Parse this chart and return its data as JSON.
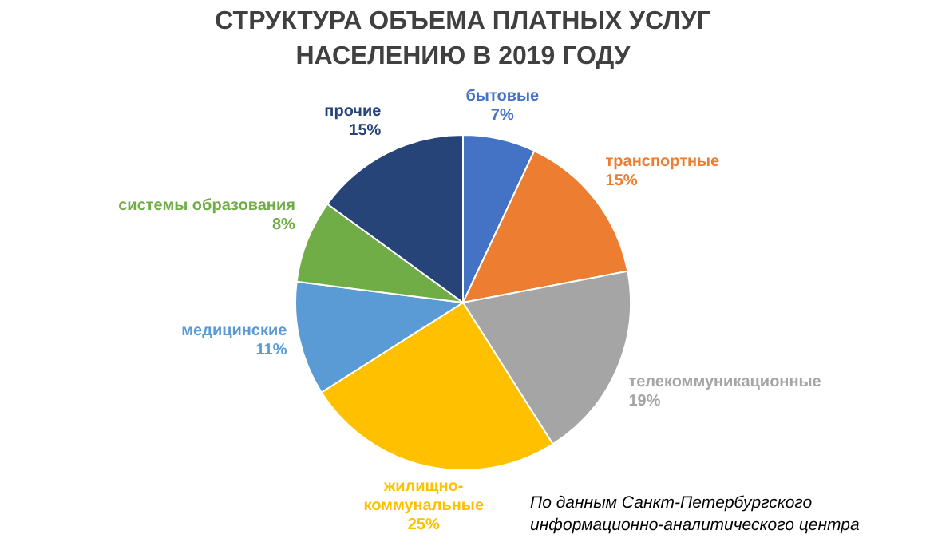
{
  "chart_data": {
    "type": "pie",
    "title": "СТРУКТУРА ОБЪЕМА ПЛАТНЫХ УСЛУГ НАСЕЛЕНИЮ В 2019 ГОДУ",
    "categories": [
      "бытовые",
      "транспортные",
      "телекоммуникационные",
      "жилищно-коммунальные",
      "медицинские",
      "системы образования",
      "прочие"
    ],
    "values": [
      7,
      15,
      19,
      25,
      11,
      8,
      15
    ],
    "value_labels": [
      "7%",
      "15%",
      "19%",
      "25%",
      "11%",
      "8%",
      "15%"
    ],
    "colors": [
      "#4472c4",
      "#ed7d31",
      "#a5a5a5",
      "#ffc000",
      "#5b9bd5",
      "#70ad47",
      "#264478"
    ],
    "legend": false,
    "annotations": [
      "По данным Санкт-Петербургского информационно-аналитического центра"
    ]
  }
}
